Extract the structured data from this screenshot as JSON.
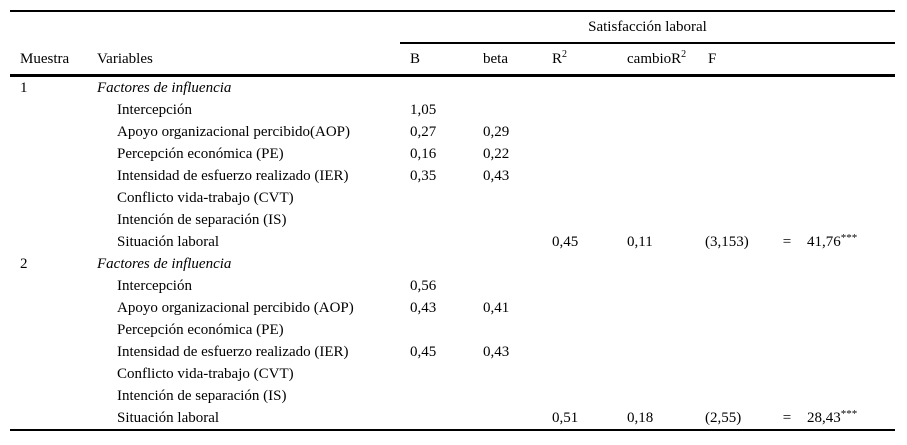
{
  "header": {
    "spanner": "Satisfacción laboral",
    "muestra": "Muestra",
    "variables": "Variables",
    "b": "B",
    "beta": "beta",
    "r2_base": "R",
    "r2_sup": "2",
    "cambio_base": "cambioR",
    "cambio_sup": "2",
    "f": "F"
  },
  "samples": [
    {
      "id": "1",
      "group_label": "Factores de influencia",
      "rows": [
        {
          "label": "Intercepción",
          "b": "1,05",
          "beta": "",
          "r2": "",
          "cambio": "",
          "f_df": "",
          "f_eq": "",
          "f_val": "",
          "f_sig": ""
        },
        {
          "label": "Apoyo organizacional percibido(AOP)",
          "b": "0,27",
          "beta": "0,29",
          "r2": "",
          "cambio": "",
          "f_df": "",
          "f_eq": "",
          "f_val": "",
          "f_sig": ""
        },
        {
          "label": "Percepción económica (PE)",
          "b": "0,16",
          "beta": "0,22",
          "r2": "",
          "cambio": "",
          "f_df": "",
          "f_eq": "",
          "f_val": "",
          "f_sig": ""
        },
        {
          "label": "Intensidad de esfuerzo realizado (IER)",
          "b": "0,35",
          "beta": "0,43",
          "r2": "",
          "cambio": "",
          "f_df": "",
          "f_eq": "",
          "f_val": "",
          "f_sig": ""
        },
        {
          "label": "Conflicto vida-trabajo (CVT)",
          "b": "",
          "beta": "",
          "r2": "",
          "cambio": "",
          "f_df": "",
          "f_eq": "",
          "f_val": "",
          "f_sig": ""
        },
        {
          "label": "Intención de separación (IS)",
          "b": "",
          "beta": "",
          "r2": "",
          "cambio": "",
          "f_df": "",
          "f_eq": "",
          "f_val": "",
          "f_sig": ""
        },
        {
          "label": "Situación laboral",
          "b": "",
          "beta": "",
          "r2": "0,45",
          "cambio": "0,11",
          "f_df": "(3,153)",
          "f_eq": "=",
          "f_val": "41,76",
          "f_sig": "***"
        }
      ]
    },
    {
      "id": "2",
      "group_label": "Factores de influencia",
      "rows": [
        {
          "label": "Intercepción",
          "b": "0,56",
          "beta": "",
          "r2": "",
          "cambio": "",
          "f_df": "",
          "f_eq": "",
          "f_val": "",
          "f_sig": ""
        },
        {
          "label": "Apoyo organizacional percibido (AOP)",
          "b": "0,43",
          "beta": "0,41",
          "r2": "",
          "cambio": "",
          "f_df": "",
          "f_eq": "",
          "f_val": "",
          "f_sig": ""
        },
        {
          "label": "Percepción económica (PE)",
          "b": "",
          "beta": "",
          "r2": "",
          "cambio": "",
          "f_df": "",
          "f_eq": "",
          "f_val": "",
          "f_sig": ""
        },
        {
          "label": "Intensidad de esfuerzo realizado (IER)",
          "b": "0,45",
          "beta": "0,43",
          "r2": "",
          "cambio": "",
          "f_df": "",
          "f_eq": "",
          "f_val": "",
          "f_sig": ""
        },
        {
          "label": "Conflicto vida-trabajo (CVT)",
          "b": "",
          "beta": "",
          "r2": "",
          "cambio": "",
          "f_df": "",
          "f_eq": "",
          "f_val": "",
          "f_sig": ""
        },
        {
          "label": "Intención de separación (IS)",
          "b": "",
          "beta": "",
          "r2": "",
          "cambio": "",
          "f_df": "",
          "f_eq": "",
          "f_val": "",
          "f_sig": ""
        },
        {
          "label": "Situación laboral",
          "b": "",
          "beta": "",
          "r2": "0,51",
          "cambio": "0,18",
          "f_df": "(2,55)",
          "f_eq": "=",
          "f_val": "28,43",
          "f_sig": "***"
        }
      ]
    }
  ]
}
